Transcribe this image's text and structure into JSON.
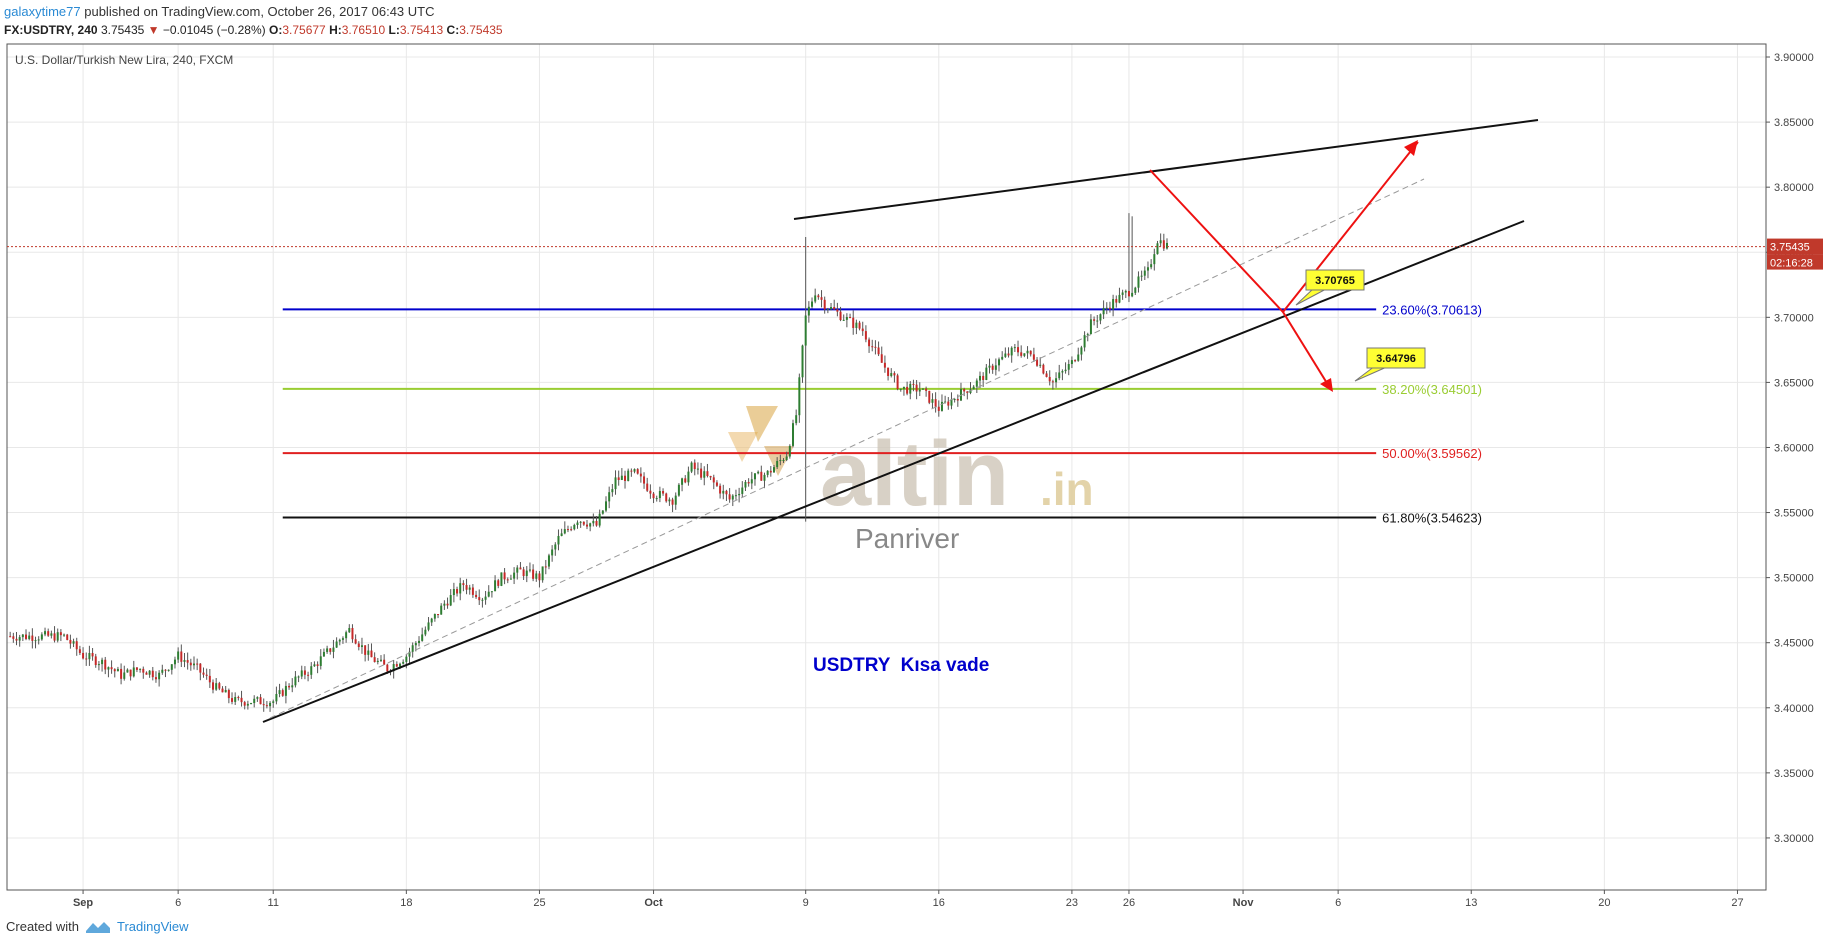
{
  "header": {
    "publisher": "galaxytime77",
    "published_text": "published on TradingView.com, October 26, 2017 06:43 UTC"
  },
  "ohlc": {
    "symbol": "FX:USDTRY, 240",
    "last": "3.75435",
    "arrow": "▼",
    "change": "−0.01045 (−0.28%)",
    "o_label": "O:",
    "o": "3.75677",
    "h_label": "H:",
    "h": "3.76510",
    "l_label": "L:",
    "l": "3.75413",
    "c_label": "C:",
    "c": "3.75435"
  },
  "footer": {
    "created_with": "Created with",
    "brand": "TradingView"
  },
  "colors": {
    "up": "#2e7d32",
    "down": "#c62828",
    "grid": "#e8e8e8",
    "fib236": "#0000cc",
    "fib382": "#9acd32",
    "fib500": "#e02020",
    "fib618": "#111111",
    "arrows": "#ee1111",
    "price_tag": "#c0392b",
    "note": "#0000cc"
  },
  "chart_data": {
    "type": "candlestick",
    "title": "U.S. Dollar/Turkish New Lira, 240, FXCM",
    "ylim": [
      3.26,
      3.91
    ],
    "y_ticks": [
      "3.90000",
      "3.85000",
      "3.80000",
      "3.75000",
      "3.70000",
      "3.65000",
      "3.60000",
      "3.55000",
      "3.50000",
      "3.45000",
      "3.40000",
      "3.35000",
      "3.30000"
    ],
    "x_ticks": [
      {
        "label": "Sep",
        "d": 0
      },
      {
        "label": "6",
        "d": 5
      },
      {
        "label": "11",
        "d": 10
      },
      {
        "label": "18",
        "d": 17
      },
      {
        "label": "25",
        "d": 24
      },
      {
        "label": "Oct",
        "d": 30
      },
      {
        "label": "9",
        "d": 38
      },
      {
        "label": "16",
        "d": 45
      },
      {
        "label": "23",
        "d": 52
      },
      {
        "label": "26",
        "d": 55
      },
      {
        "label": "Nov",
        "d": 61
      },
      {
        "label": "6",
        "d": 66
      },
      {
        "label": "13",
        "d": 73
      },
      {
        "label": "20",
        "d": 80
      },
      {
        "label": "27",
        "d": 87
      }
    ],
    "x_range_days": [
      -4,
      88.5
    ],
    "price_path": [
      [
        -4,
        3.455
      ],
      [
        -1,
        3.455
      ],
      [
        0,
        3.44
      ],
      [
        1,
        3.435
      ],
      [
        2,
        3.425
      ],
      [
        3,
        3.43
      ],
      [
        4,
        3.425
      ],
      [
        5,
        3.44
      ],
      [
        6,
        3.43
      ],
      [
        7,
        3.415
      ],
      [
        8,
        3.405
      ],
      [
        9,
        3.405
      ],
      [
        10,
        3.405
      ],
      [
        11,
        3.42
      ],
      [
        12,
        3.43
      ],
      [
        13,
        3.445
      ],
      [
        14,
        3.46
      ],
      [
        15,
        3.44
      ],
      [
        16,
        3.43
      ],
      [
        17,
        3.44
      ],
      [
        18,
        3.46
      ],
      [
        19,
        3.48
      ],
      [
        20,
        3.495
      ],
      [
        21,
        3.485
      ],
      [
        22,
        3.5
      ],
      [
        23,
        3.505
      ],
      [
        24,
        3.5
      ],
      [
        25,
        3.53
      ],
      [
        26,
        3.545
      ],
      [
        27,
        3.54
      ],
      [
        28,
        3.575
      ],
      [
        29,
        3.58
      ],
      [
        30,
        3.565
      ],
      [
        31,
        3.56
      ],
      [
        32,
        3.585
      ],
      [
        33,
        3.575
      ],
      [
        34,
        3.56
      ],
      [
        35,
        3.575
      ],
      [
        36,
        3.58
      ],
      [
        37,
        3.595
      ],
      [
        37.5,
        3.625
      ],
      [
        38,
        3.7
      ],
      [
        38.5,
        3.72
      ],
      [
        39,
        3.71
      ],
      [
        40,
        3.7
      ],
      [
        41,
        3.69
      ],
      [
        42,
        3.665
      ],
      [
        43,
        3.645
      ],
      [
        44,
        3.645
      ],
      [
        45,
        3.63
      ],
      [
        46,
        3.64
      ],
      [
        47,
        3.65
      ],
      [
        48,
        3.665
      ],
      [
        49,
        3.675
      ],
      [
        50,
        3.67
      ],
      [
        51,
        3.65
      ],
      [
        52,
        3.665
      ],
      [
        53,
        3.695
      ],
      [
        54,
        3.71
      ],
      [
        55,
        3.72
      ],
      [
        56,
        3.735
      ],
      [
        56.5,
        3.76
      ],
      [
        57,
        3.755
      ]
    ],
    "fib_levels": [
      {
        "label": "23.60%(3.70613)",
        "price": 3.70613
      },
      {
        "label": "38.20%(3.64501)",
        "price": 3.64501
      },
      {
        "label": "50.00%(3.59562)",
        "price": 3.59562
      },
      {
        "label": "61.80%(3.54623)",
        "price": 3.54623
      }
    ],
    "current_price": {
      "label": "3.75435",
      "price": 3.75435,
      "countdown": "02:16:28"
    },
    "callouts": [
      {
        "label": "3.70765",
        "price": 3.70765
      },
      {
        "label": "3.64796",
        "price": 3.64796
      }
    ],
    "watermark": {
      "brand": "altin",
      "tld": ".in",
      "sub": "Panriver"
    },
    "annotation": "USDTRY  Kısa vade"
  }
}
